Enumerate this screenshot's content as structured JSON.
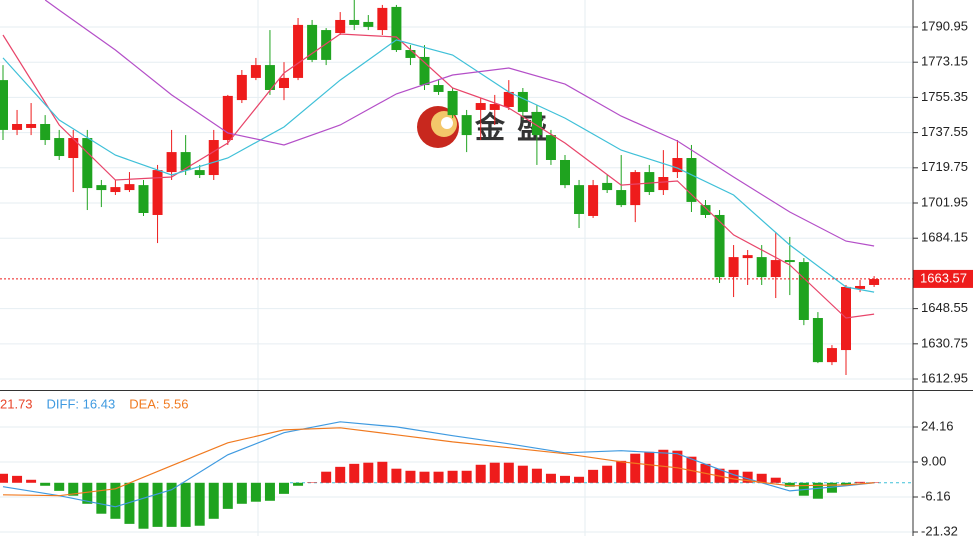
{
  "chart_data": [
    {
      "type": "candlestick",
      "open": [
        1764.1,
        1738.9,
        1739.9,
        1741.9,
        1734.8,
        1724.7,
        1734.8,
        1711.0,
        1707.5,
        1708.5,
        1711.0,
        1695.9,
        1717.6,
        1727.7,
        1718.6,
        1716.1,
        1733.8,
        1754.0,
        1765.2,
        1771.7,
        1760.1,
        1765.2,
        1792.0,
        1789.4,
        1787.9,
        1794.5,
        1793.5,
        1789.4,
        1801.1,
        1779.3,
        1775.8,
        1761.6,
        1758.6,
        1746.4,
        1749.0,
        1749.0,
        1750.5,
        1758.1,
        1748.0,
        1736.3,
        1723.7,
        1711.0,
        1695.4,
        1712.1,
        1708.5,
        1700.9,
        1717.6,
        1708.5,
        1717.6,
        1724.7,
        1700.9,
        1695.9,
        1664.5,
        1674.1,
        1674.6,
        1664.5,
        1673.1,
        1672.1,
        1643.8,
        1621.5,
        1627.6,
        1658.5,
        1660.5
      ],
      "close": [
        1738.9,
        1741.9,
        1741.9,
        1733.8,
        1725.7,
        1734.8,
        1709.5,
        1708.5,
        1710.0,
        1711.5,
        1696.9,
        1718.6,
        1727.7,
        1718.6,
        1716.1,
        1733.8,
        1756.1,
        1766.7,
        1771.7,
        1759.1,
        1765.2,
        1792.0,
        1774.3,
        1774.3,
        1794.5,
        1792.0,
        1791.0,
        1800.6,
        1779.3,
        1775.3,
        1761.6,
        1758.1,
        1746.4,
        1736.3,
        1752.5,
        1752.0,
        1758.1,
        1748.0,
        1736.3,
        1723.7,
        1711.0,
        1696.4,
        1711.0,
        1708.5,
        1700.9,
        1717.6,
        1707.5,
        1715.1,
        1724.7,
        1702.5,
        1695.9,
        1664.5,
        1674.6,
        1675.6,
        1664.5,
        1673.1,
        1672.1,
        1642.8,
        1621.5,
        1628.6,
        1659.5,
        1660.0,
        1663.5
      ],
      "high": [
        1771.7,
        1749.0,
        1752.5,
        1746.4,
        1738.9,
        1738.9,
        1738.9,
        1713.6,
        1713.6,
        1717.6,
        1713.6,
        1721.2,
        1738.9,
        1736.3,
        1721.2,
        1738.9,
        1756.6,
        1769.2,
        1775.3,
        1789.4,
        1773.2,
        1795.5,
        1794.5,
        1790.4,
        1798.5,
        1804.6,
        1797.0,
        1802.1,
        1802.1,
        1781.8,
        1781.8,
        1764.1,
        1760.1,
        1749.0,
        1755.0,
        1756.6,
        1764.1,
        1760.1,
        1751.5,
        1738.9,
        1726.2,
        1713.6,
        1713.6,
        1716.1,
        1726.2,
        1718.6,
        1721.2,
        1728.7,
        1733.8,
        1731.3,
        1703.5,
        1698.4,
        1680.7,
        1678.2,
        1680.7,
        1687.3,
        1684.8,
        1674.1,
        1646.8,
        1630.1,
        1660.5,
        1663.0,
        1665.0
      ],
      "low": [
        1733.8,
        1736.3,
        1736.3,
        1731.3,
        1723.7,
        1707.5,
        1698.4,
        1699.9,
        1706.0,
        1707.5,
        1695.4,
        1681.7,
        1713.6,
        1716.1,
        1714.6,
        1713.6,
        1731.3,
        1752.5,
        1764.1,
        1756.6,
        1754.0,
        1764.1,
        1773.2,
        1771.7,
        1786.9,
        1789.4,
        1789.4,
        1786.9,
        1778.3,
        1771.7,
        1759.1,
        1756.6,
        1744.9,
        1727.7,
        1733.8,
        1741.4,
        1749.0,
        1743.9,
        1721.2,
        1721.2,
        1709.5,
        1689.3,
        1694.4,
        1707.0,
        1699.9,
        1692.3,
        1706.0,
        1706.0,
        1714.6,
        1697.4,
        1694.4,
        1661.5,
        1654.4,
        1660.5,
        1660.5,
        1653.9,
        1655.4,
        1640.2,
        1621.0,
        1620.0,
        1615.0,
        1656.9,
        1659.5
      ],
      "up_color": "#ee1c1c",
      "down_color": "#1fa31f",
      "ma_lines": [
        {
          "color": "#e8456a",
          "x": [
            0,
            4,
            8,
            12,
            16,
            20,
            24,
            28,
            32,
            36,
            40,
            44,
            48,
            52,
            56,
            60,
            62
          ],
          "values": [
            1786.9,
            1741.4,
            1713.6,
            1715.1,
            1732.3,
            1767.7,
            1787.4,
            1785.9,
            1760.1,
            1750.0,
            1732.3,
            1711.0,
            1713.1,
            1685.8,
            1670.6,
            1643.8,
            1645.8
          ]
        },
        {
          "color": "#3fc0d8",
          "x": [
            0,
            4,
            8,
            12,
            16,
            20,
            24,
            28,
            32,
            36,
            40,
            44,
            48,
            52,
            56,
            60,
            62
          ],
          "values": [
            1775.3,
            1743.9,
            1726.2,
            1716.1,
            1724.7,
            1740.4,
            1764.1,
            1784.4,
            1776.8,
            1758.1,
            1744.9,
            1728.7,
            1719.6,
            1706.0,
            1680.7,
            1659.5,
            1656.9
          ]
        },
        {
          "color": "#b44fc8",
          "x": [
            3,
            4,
            8,
            12,
            16,
            20,
            24,
            28,
            32,
            36,
            40,
            44,
            48,
            52,
            56,
            60,
            62
          ],
          "values": [
            1804.6,
            1799.5,
            1779.3,
            1756.6,
            1737.4,
            1731.3,
            1741.4,
            1757.1,
            1766.7,
            1770.2,
            1762.1,
            1745.9,
            1733.3,
            1715.1,
            1697.4,
            1682.7,
            1680.2
          ]
        }
      ],
      "current_price": 1663.57,
      "current_color": "#ee1c1c",
      "ylim": [
        1607.4,
        1804.6
      ],
      "yticks": [
        1612.95,
        1630.75,
        1648.55,
        1684.15,
        1701.95,
        1719.75,
        1737.55,
        1755.35,
        1773.15,
        1790.95
      ],
      "grid": true,
      "watermark": [
        "金",
        "盛"
      ]
    },
    {
      "type": "macd",
      "legend": [
        {
          "text": "21.73",
          "color": "#e8452a"
        },
        {
          "text": "DIFF: 16.43",
          "color": "#3f9ae0"
        },
        {
          "text": "DEA: 5.56",
          "color": "#f07a20"
        }
      ],
      "histogram": [
        3.9,
        3.0,
        1.3,
        -1.3,
        -3.5,
        -5.6,
        -9.1,
        -13.4,
        -15.6,
        -17.8,
        -19.9,
        -19.1,
        -19.1,
        -19.1,
        -18.6,
        -15.6,
        -11.3,
        -9.1,
        -8.2,
        -7.8,
        -4.8,
        -1.3,
        0.2,
        4.8,
        6.9,
        8.2,
        8.7,
        9.1,
        6.1,
        5.2,
        4.8,
        4.8,
        5.2,
        5.2,
        7.8,
        8.7,
        8.7,
        7.4,
        6.1,
        3.9,
        3.0,
        2.6,
        5.6,
        7.4,
        9.5,
        12.6,
        13.4,
        14.3,
        13.9,
        11.3,
        8.2,
        6.1,
        5.6,
        4.8,
        3.9,
        2.2,
        -1.7,
        -5.6,
        -6.9,
        -4.3,
        -0.9,
        0.4,
        0.2
      ],
      "up_color": "#ee1c1c",
      "down_color": "#1fa31f",
      "series": [
        {
          "color": "#3f9ae0",
          "x": [
            0,
            4,
            8,
            12,
            16,
            20,
            24,
            28,
            32,
            36,
            40,
            44,
            48,
            52,
            56,
            60,
            62
          ],
          "values": [
            -1.7,
            -5.6,
            -10.4,
            -3.0,
            12.1,
            21.7,
            26.4,
            24.2,
            20.4,
            16.9,
            13.0,
            13.9,
            12.6,
            3.5,
            -3.5,
            -1.3,
            0
          ]
        },
        {
          "color": "#f07a20",
          "x": [
            0,
            4,
            8,
            12,
            16,
            20,
            24,
            28,
            32,
            36,
            40,
            44,
            48,
            52,
            56,
            60,
            62
          ],
          "values": [
            -5.2,
            -5.6,
            -2.6,
            7.4,
            17.3,
            22.9,
            23.8,
            20.8,
            17.7,
            15.2,
            12.6,
            9.1,
            6.5,
            1.7,
            -1.3,
            -0.9,
            0
          ]
        }
      ],
      "ylim": [
        -23.05,
        39.75
      ],
      "yticks": [
        -21.32,
        -6.16,
        {
          "value": 9,
          "label": "9.00"
        },
        24.16
      ],
      "grid": true
    }
  ]
}
